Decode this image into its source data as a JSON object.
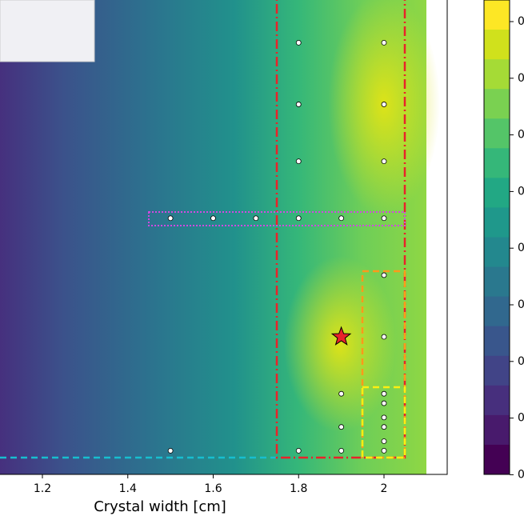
{
  "chart_data": {
    "type": "contour",
    "xlabel": "Crystal width [cm]",
    "xlim": [
      1.1007,
      2.148
    ],
    "xticks": [
      1.2,
      1.4,
      1.6,
      1.8,
      2.0
    ],
    "ylim": [
      0,
      1
    ],
    "points": {
      "x": [
        1.8,
        2.0,
        1.8,
        2.0,
        1.8,
        2.0,
        1.5,
        1.6,
        1.7,
        1.8,
        1.9,
        2.0,
        2.0,
        2.0,
        1.9,
        2.0,
        2.0,
        2.0,
        2.0,
        2.0,
        2.0,
        1.9,
        1.5,
        1.8,
        1.9
      ],
      "y": [
        0.91,
        0.91,
        0.78,
        0.78,
        0.66,
        0.66,
        0.54,
        0.54,
        0.54,
        0.54,
        0.54,
        0.54,
        0.42,
        0.29,
        0.17,
        0.17,
        0.15,
        0.12,
        0.1,
        0.07,
        0.05,
        0.1,
        0.05,
        0.05,
        0.05
      ]
    },
    "best": {
      "x": 1.9,
      "y": 0.29,
      "color": "#e8232a"
    },
    "colorbar_colors": [
      "#fde725",
      "#d0e11c",
      "#a5db36",
      "#7ad151",
      "#54c568",
      "#35b779",
      "#22a884",
      "#1f988b",
      "#23888e",
      "#2a788e",
      "#31688e",
      "#39568c",
      "#414487",
      "#472f7d",
      "#481a6c",
      "#440154"
    ],
    "colorbar_tick_labels": [
      "0",
      "0",
      "0",
      "0",
      "0",
      "0",
      "0",
      "0",
      "0"
    ]
  }
}
